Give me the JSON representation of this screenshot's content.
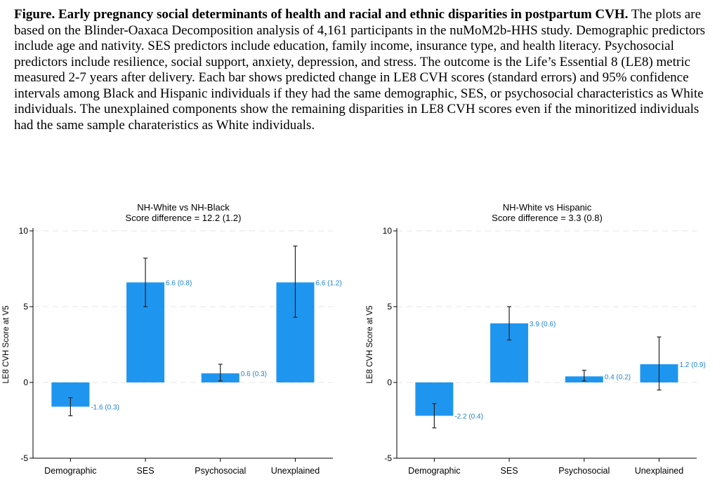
{
  "caption": {
    "lead": "Figure. Early pregnancy social determinants of health and racial and ethnic disparities in postpartum CVH.",
    "body": "The plots are based on the Blinder-Oaxaca Decomposition analysis of 4,161 participants in the nuMoM2b-HHS study. Demographic predictors include age and nativity. SES predictors include education, family income, insurance type, and health literacy. Psychosocial predictors include resilience, social support, anxiety, depression, and stress. The outcome is the Life’s Essential 8 (LE8) metric measured 2-7 years after delivery. Each bar shows predicted change in LE8 CVH scores (standard errors) and 95% confidence intervals among Black and Hispanic individuals if they had the same demographic, SES, or psychosocial characteristics as White individuals. The unexplained components show the remaining disparities in LE8 CVH scores even if the minoritized individuals had the same sample charateristics as White individuals."
  },
  "colors": {
    "bar": "#1e96f0",
    "label": "#1e82d2",
    "grid": "#e6e6e6"
  },
  "chart_data": [
    {
      "type": "bar",
      "title": "NH-White vs NH-Black",
      "subtitle": "Score difference = 12.2 (1.2)",
      "ylabel": "LE8 CVH Score at V5",
      "xlabel": "",
      "ylim": [
        -5,
        10
      ],
      "yticks": [
        -5,
        0,
        5,
        10
      ],
      "grid": true,
      "categories": [
        "Demographic",
        "SES",
        "Psychosocial",
        "Unexplained"
      ],
      "values": [
        -1.6,
        6.6,
        0.6,
        6.6
      ],
      "ci_low": [
        -2.2,
        5.0,
        0.1,
        4.3
      ],
      "ci_high": [
        -1.0,
        8.2,
        1.2,
        9.0
      ],
      "data_labels": [
        "-1.6 (0.3)",
        "6.6 (0.8)",
        "0.6 (0.3)",
        "6.6 (1.2)"
      ]
    },
    {
      "type": "bar",
      "title": "NH-White vs Hispanic",
      "subtitle": "Score difference = 3.3 (0.8)",
      "ylabel": "LE8 CVH Score at V5",
      "xlabel": "",
      "ylim": [
        -5,
        10
      ],
      "yticks": [
        -5,
        0,
        5,
        10
      ],
      "grid": true,
      "categories": [
        "Demographic",
        "SES",
        "Psychosocial",
        "Unexplained"
      ],
      "values": [
        -2.2,
        3.9,
        0.4,
        1.2
      ],
      "ci_low": [
        -3.0,
        2.8,
        0.1,
        -0.5
      ],
      "ci_high": [
        -1.4,
        5.0,
        0.8,
        3.0
      ],
      "data_labels": [
        "-2.2 (0.4)",
        "3.9 (0.6)",
        "0.4 (0.2)",
        "1.2 (0.9)"
      ]
    }
  ]
}
